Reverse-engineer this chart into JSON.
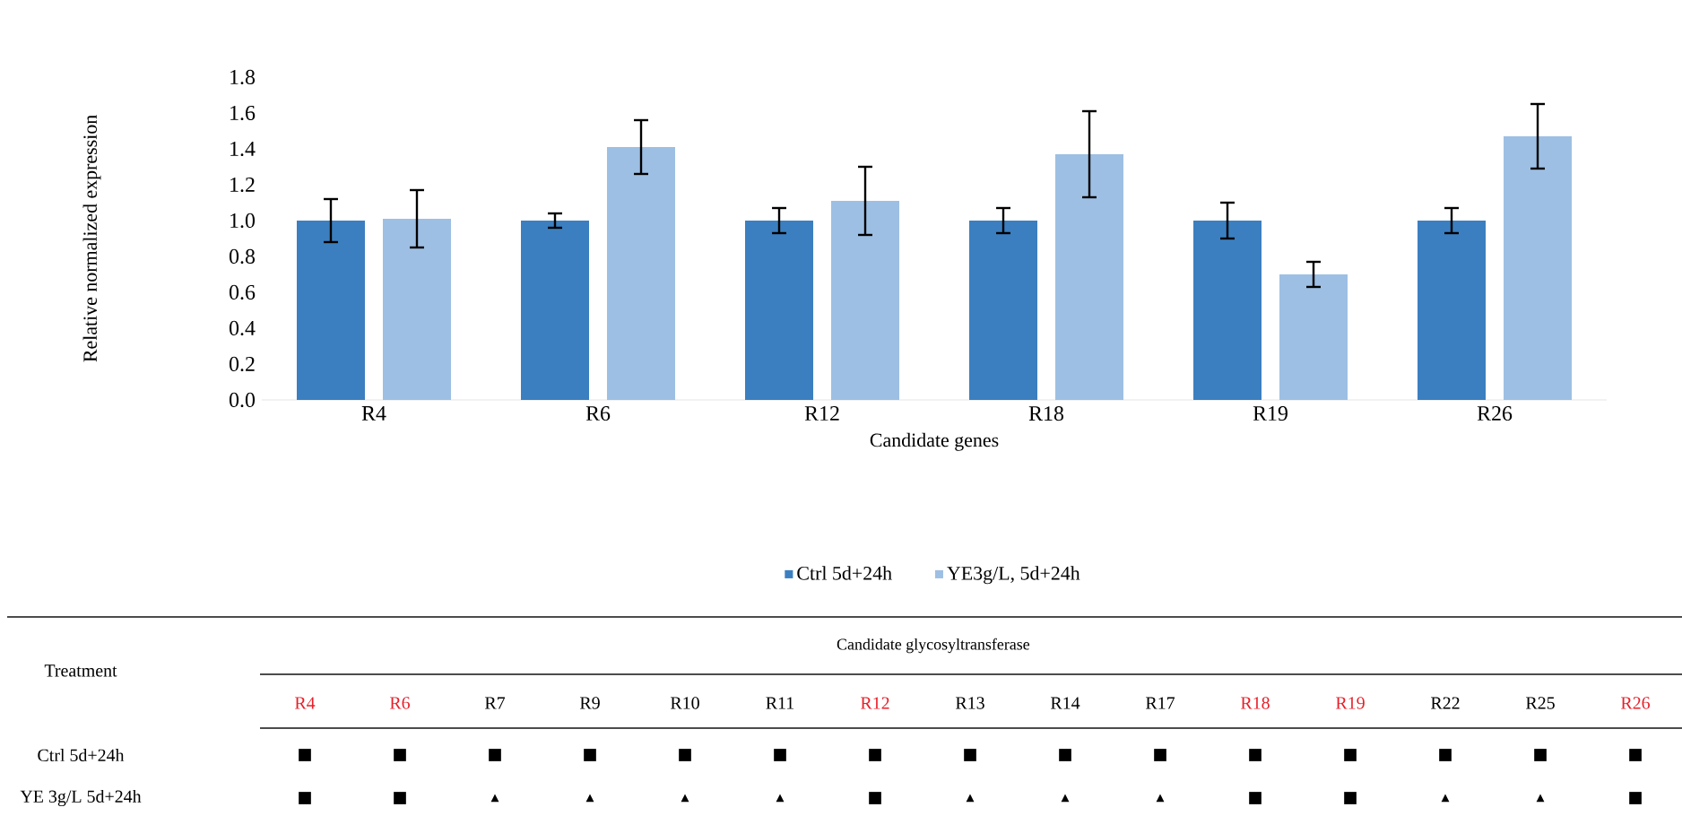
{
  "chart_data": [
    {
      "type": "bar",
      "xlabel": "Candidate genes",
      "ylabel": "Relative normalized expression",
      "categories": [
        "R4",
        "R6",
        "R12",
        "R18",
        "R19",
        "R26"
      ],
      "series": [
        {
          "name": "Ctrl 5d+24h",
          "color": "#3b7fc0",
          "values": [
            1.0,
            1.0,
            1.0,
            1.0,
            1.0,
            1.0
          ],
          "errors": [
            0.12,
            0.04,
            0.07,
            0.07,
            0.1,
            0.07
          ]
        },
        {
          "name": "YE3g/L, 5d+24h",
          "color": "#9dbfe3",
          "values": [
            1.01,
            1.41,
            1.11,
            1.37,
            0.7,
            1.47
          ],
          "errors": [
            0.16,
            0.15,
            0.19,
            0.24,
            0.07,
            0.18
          ]
        }
      ],
      "ylim": [
        0,
        1.8
      ],
      "yticks": [
        {
          "value": 0,
          "label": "0.0"
        },
        {
          "value": 0.2,
          "label": "0.2"
        },
        {
          "value": 0.4,
          "label": "0.4"
        },
        {
          "value": 0.6,
          "label": "0.6"
        },
        {
          "value": 0.8,
          "label": "0.8"
        },
        {
          "value": 1.0,
          "label": "1.0"
        },
        {
          "value": 1.2,
          "label": "1.2"
        },
        {
          "value": 1.4,
          "label": "1.4"
        },
        {
          "value": 1.6,
          "label": "1.6"
        },
        {
          "value": 1.8,
          "label": "1.8"
        }
      ],
      "legend": "bottom"
    },
    {
      "type": "other",
      "title": "Candidate glycosyltransferase",
      "ylabel": "Treatment",
      "categories": [
        "R4",
        "R6",
        "R7",
        "R9",
        "R10",
        "R11",
        "R12",
        "R13",
        "R14",
        "R17",
        "R18",
        "R19",
        "R22",
        "R25",
        "R26"
      ],
      "colors": [
        "#e8202a",
        "#e8202a",
        "#000000",
        "#000000",
        "#000000",
        "#000000",
        "#e8202a",
        "#000000",
        "#000000",
        "#000000",
        "#e8202a",
        "#e8202a",
        "#000000",
        "#000000",
        "#e8202a"
      ],
      "y_categories": [
        "Ctrl 5d+24h",
        "YE 3g/L 5d+24h"
      ],
      "cell_labels": [
        [
          "■",
          "■",
          "■",
          "■",
          "■",
          "■",
          "■",
          "■",
          "■",
          "■",
          "■",
          "■",
          "■",
          "■",
          "■"
        ],
        [
          "■",
          "■",
          "▴",
          "▴",
          "▴",
          "▴",
          "■",
          "▴",
          "▴",
          "▴",
          "■",
          "■",
          "▴",
          "▴",
          "■"
        ]
      ]
    }
  ]
}
